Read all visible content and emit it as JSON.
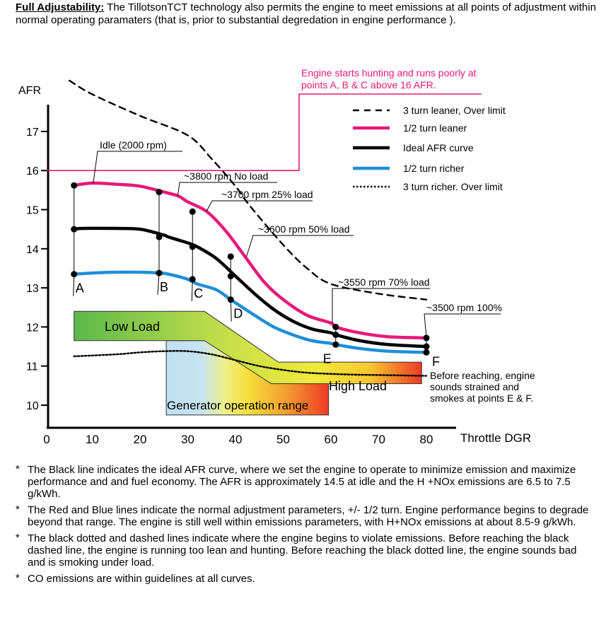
{
  "intro": {
    "label": "Full Adjustability:",
    "text": " The TillotsonTCT technology  also permits the engine to meet emissions at all points of adjustment within normal operating paramaters (that is, prior to substantial degredation in engine performance )."
  },
  "chart_data": {
    "type": "line",
    "ylabel": "AFR",
    "xlabel": "Throttle DGR",
    "x_ticks": [
      0,
      10,
      20,
      30,
      40,
      50,
      60,
      70,
      80
    ],
    "y_ticks": [
      10,
      11,
      12,
      13,
      14,
      15,
      16,
      17
    ],
    "xlim": [
      0,
      84
    ],
    "ylim": [
      9.5,
      17.8
    ],
    "grid": false,
    "legend_position": "top-right",
    "colors": {
      "red": "#e6197b",
      "black": "#000000",
      "blue": "#1f8fd8",
      "hunting": "#e6197b"
    },
    "series": [
      {
        "name": "3 turn leaner, Over limit",
        "style": "dashed",
        "color": "#000000",
        "x": [
          5,
          10,
          20,
          30,
          35,
          40,
          43,
          50,
          55,
          60,
          70,
          80
        ],
        "y": [
          18.3,
          17.95,
          17.4,
          16.9,
          16.3,
          15.6,
          15.1,
          14.1,
          13.5,
          13.1,
          12.85,
          12.7
        ]
      },
      {
        "name": "1/2 turn leaner",
        "style": "solid",
        "color": "#e6197b",
        "x": [
          6,
          10,
          15,
          20,
          25,
          28,
          30,
          34,
          38,
          42,
          46,
          50,
          55,
          60,
          61,
          66,
          72,
          80
        ],
        "y": [
          15.62,
          15.68,
          15.65,
          15.6,
          15.45,
          15.35,
          15.2,
          14.95,
          14.45,
          13.8,
          13.15,
          12.7,
          12.3,
          12.1,
          12.0,
          11.85,
          11.75,
          11.72
        ]
      },
      {
        "name": "Ideal AFR curve",
        "style": "solid",
        "color": "#000000",
        "x": [
          6,
          8,
          15,
          20,
          25,
          26,
          30,
          32,
          36,
          40,
          44,
          48,
          52,
          56,
          60,
          61,
          66,
          72,
          80
        ],
        "y": [
          14.5,
          14.52,
          14.52,
          14.5,
          14.35,
          14.3,
          14.15,
          14.05,
          13.75,
          13.3,
          12.85,
          12.45,
          12.15,
          11.95,
          11.85,
          11.8,
          11.65,
          11.55,
          11.5
        ]
      },
      {
        "name": "1/2 turn richer",
        "style": "solid",
        "color": "#1f8fd8",
        "x": [
          6,
          10,
          15,
          20,
          24,
          26,
          30,
          32,
          36,
          39,
          44,
          48,
          52,
          56,
          60,
          61,
          66,
          72,
          80
        ],
        "y": [
          13.35,
          13.38,
          13.4,
          13.4,
          13.38,
          13.35,
          13.22,
          13.1,
          12.95,
          12.7,
          12.3,
          12.0,
          11.8,
          11.65,
          11.58,
          11.55,
          11.45,
          11.38,
          11.35
        ]
      },
      {
        "name": "3 turn richer. Over limit",
        "style": "dotted",
        "color": "#000000",
        "x": [
          6,
          15,
          20,
          25,
          30,
          35,
          40,
          45,
          50,
          55,
          60,
          65,
          70,
          75,
          80
        ],
        "y": [
          11.25,
          11.3,
          11.35,
          11.38,
          11.38,
          11.3,
          11.15,
          11.0,
          10.9,
          10.83,
          10.8,
          10.78,
          10.77,
          10.76,
          10.75
        ]
      }
    ],
    "points": [
      {
        "label": "A",
        "x": 6,
        "curves": [
          13.35,
          14.5,
          15.62
        ]
      },
      {
        "label": "B",
        "x": 24,
        "curves": [
          13.38,
          14.3,
          15.45
        ]
      },
      {
        "label": "C",
        "x": 31,
        "curves": [
          13.22,
          14.05,
          14.95
        ]
      },
      {
        "label": "D",
        "x": 39,
        "curves": [
          12.7,
          13.3,
          13.8
        ]
      },
      {
        "label": "E",
        "x": 61,
        "curves": [
          11.55,
          11.8,
          12.0
        ]
      },
      {
        "label": "F",
        "x": 80,
        "curves": [
          11.35,
          11.5,
          11.72
        ]
      }
    ],
    "hunting_threshold": {
      "y": 16.0,
      "label_line1": "Engine starts hunting and runs poorly at",
      "label_line2": "points A, B & C above 16 AFR."
    },
    "annotations": {
      "idle": "Idle (2000 rpm)",
      "no_load": "~3800 rpm No load",
      "load25": "~3700 rpm 25% load",
      "load50": "~3600 rpm 50% load",
      "load70": "~3550 rpm 70% load",
      "load100": "~3500 rpm 100%",
      "before_reaching_1": "Before reaching, engine",
      "before_reaching_2": "sounds strained and",
      "before_reaching_3": "smokes at points E & F."
    },
    "regions": {
      "low_load": "Low Load",
      "high_load": "High Load",
      "generator": "Generator operation range"
    }
  },
  "notes": [
    "The Black line indicates the ideal AFR curve, where we set the engine to operate to minimize emission and maximize performance and and fuel economy.  The AFR is approximately 14.5 at idle and the H +NOx emissions are 6.5 to 7.5 g/kWh.",
    "The Red and Blue lines indicate the normal adjustment parameters, +/- 1/2 turn.  Engine performance begins to degrade beyond that range. The engine is still well within emissions parameters, with H+NOx emissions at about 8.5-9 g/kWh.",
    "The black dotted and dashed lines indicate where the engine begins to violate emissions.  Before reaching the black dashed line, the engine is running too lean and hunting.  Before reaching the black dotted line, the engine sounds bad and is smoking under load.",
    "CO emissions are within guidelines at all curves."
  ],
  "note_marker": "*"
}
